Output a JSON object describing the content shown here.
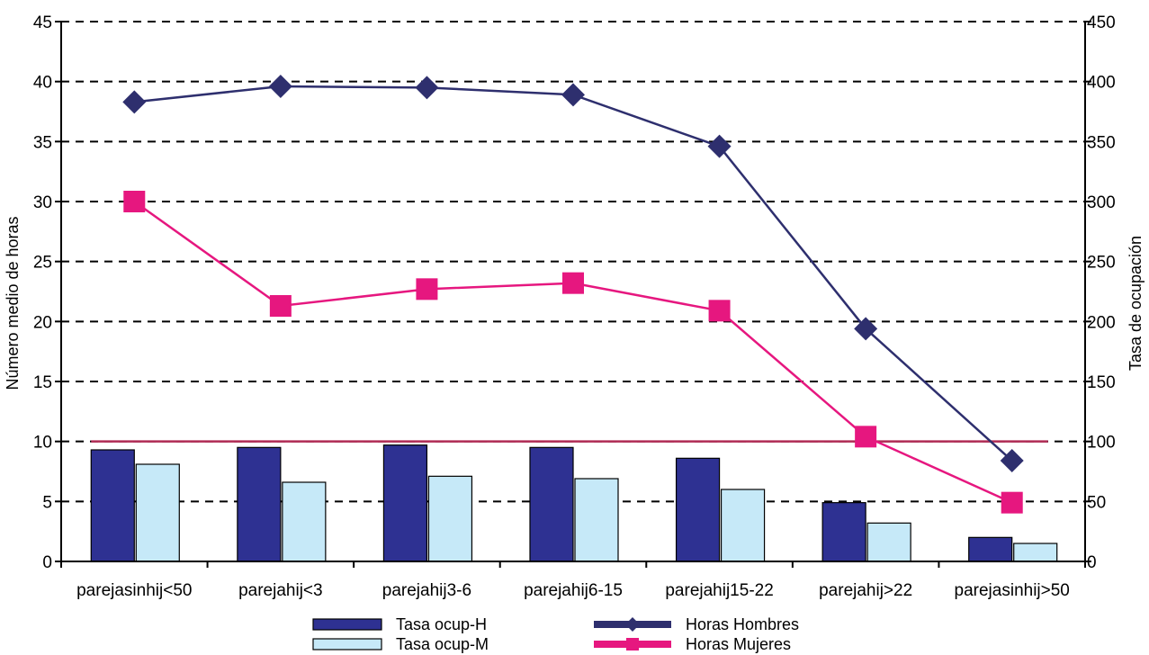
{
  "chart_data": {
    "type": "bar",
    "categories": [
      "parejasinhij<50",
      "parejahij<3",
      "parejahij3-6",
      "parejahij6-15",
      "parejahij15-22",
      "parejahij>22",
      "parejasinhij>50"
    ],
    "ylabel": "Número medio de horas",
    "y2label": "Tasa de ocupación",
    "ylim": [
      0,
      45
    ],
    "y2lim": [
      0,
      450
    ],
    "yticks": [
      "0",
      "5",
      "10",
      "15",
      "20",
      "25",
      "30",
      "35",
      "40",
      "45"
    ],
    "y2ticks": [
      "0",
      "50",
      "100",
      "150",
      "200",
      "250",
      "300",
      "350",
      "400",
      "450"
    ],
    "grid": "dashed horizontal",
    "reference_line": {
      "axis": "y2",
      "value": 100,
      "color": "#b02b55"
    },
    "legend_position": "bottom",
    "series": [
      {
        "name": "Tasa ocup-H",
        "kind": "bar",
        "axis": "y2",
        "color": "#2e3192",
        "values": [
          93,
          95,
          97,
          95,
          86,
          49,
          20
        ]
      },
      {
        "name": "Tasa ocup-M",
        "kind": "bar",
        "axis": "y2",
        "color": "#c6e9f8",
        "values": [
          81,
          66,
          71,
          69,
          60,
          32,
          15
        ]
      },
      {
        "name": "Horas Hombres",
        "kind": "line",
        "axis": "y",
        "marker": "diamond",
        "color": "#2e2f6e",
        "values": [
          38.3,
          39.6,
          39.5,
          38.9,
          34.6,
          19.4,
          8.4
        ]
      },
      {
        "name": "Horas Mujeres",
        "kind": "line",
        "axis": "y",
        "marker": "square",
        "color": "#e6177f",
        "values": [
          30.0,
          21.3,
          22.7,
          23.2,
          20.9,
          10.4,
          4.9
        ]
      }
    ]
  }
}
